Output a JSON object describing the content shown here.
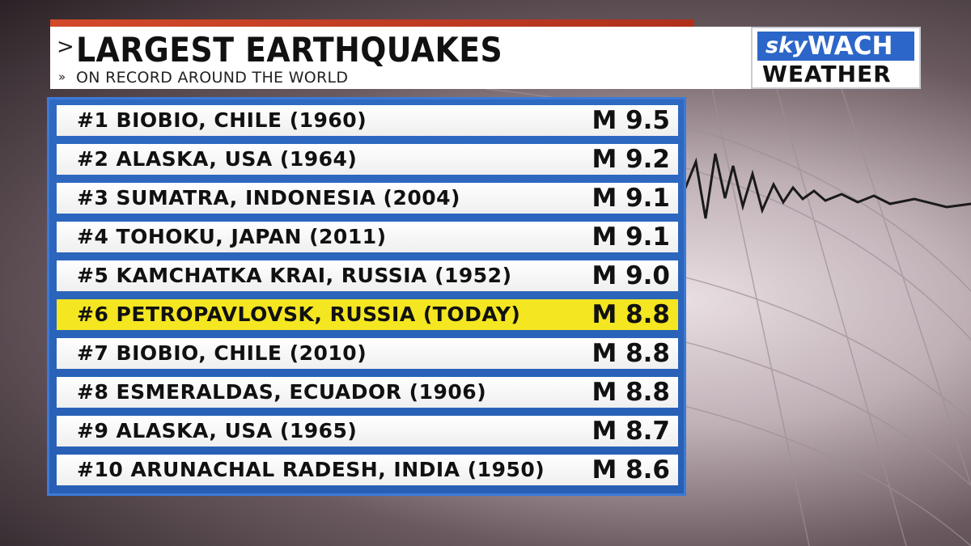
{
  "header": {
    "title": "LARGEST EARTHQUAKES",
    "subtitle": "ON RECORD AROUND THE WORLD",
    "title_chevron": ">",
    "subtitle_chevron": "»"
  },
  "logo": {
    "sky": "sky",
    "wach": "WACH",
    "weather": "WEATHER"
  },
  "colors": {
    "panel_blue": "#2e69c2",
    "highlight_yellow": "#f4e620",
    "top_bar_red": "#d24a2a"
  },
  "rows": [
    {
      "label": "#1 BIOBIO, CHILE (1960)",
      "mag": "M 9.5",
      "highlight": false
    },
    {
      "label": "#2 ALASKA, USA (1964)",
      "mag": "M 9.2",
      "highlight": false
    },
    {
      "label": "#3 SUMATRA, INDONESIA (2004)",
      "mag": "M 9.1",
      "highlight": false
    },
    {
      "label": "#4 TOHOKU, JAPAN (2011)",
      "mag": "M 9.1",
      "highlight": false
    },
    {
      "label": "#5 KAMCHATKA KRAI, RUSSIA (1952)",
      "mag": "M 9.0",
      "highlight": false
    },
    {
      "label": "#6 PETROPAVLOVSK, RUSSIA (TODAY)",
      "mag": "M 8.8",
      "highlight": true
    },
    {
      "label": "#7 BIOBIO, CHILE (2010)",
      "mag": "M 8.8",
      "highlight": false
    },
    {
      "label": "#8 ESMERALDAS, ECUADOR (1906)",
      "mag": "M 8.8",
      "highlight": false
    },
    {
      "label": "#9 ALASKA, USA (1965)",
      "mag": "M 8.7",
      "highlight": false
    },
    {
      "label": "#10 ARUNACHAL RADESH, INDIA (1950)",
      "mag": "M 8.6",
      "highlight": false
    }
  ]
}
